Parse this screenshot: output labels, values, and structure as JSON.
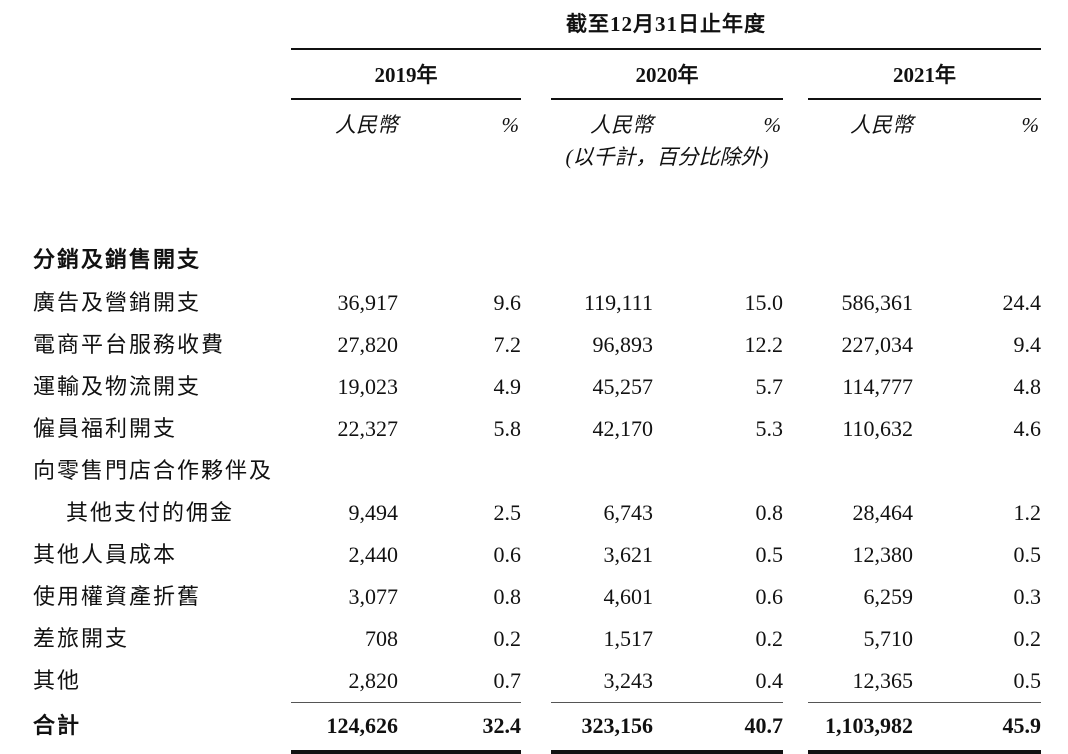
{
  "table": {
    "period_header": "截至12月31日止年度",
    "years": [
      {
        "label": "2019年"
      },
      {
        "label": "2020年"
      },
      {
        "label": "2021年"
      }
    ],
    "columns": {
      "rmb": "人民幣",
      "pct": "%"
    },
    "unit_note": "(以千計，百分比除外)",
    "section_header": "分銷及銷售開支",
    "rows": [
      {
        "label": "廣告及營銷開支",
        "values": [
          "36,917",
          "9.6",
          "119,111",
          "15.0",
          "586,361",
          "24.4"
        ]
      },
      {
        "label": "電商平台服務收費",
        "values": [
          "27,820",
          "7.2",
          "96,893",
          "12.2",
          "227,034",
          "9.4"
        ]
      },
      {
        "label": "運輸及物流開支",
        "values": [
          "19,023",
          "4.9",
          "45,257",
          "5.7",
          "114,777",
          "4.8"
        ]
      },
      {
        "label": "僱員福利開支",
        "values": [
          "22,327",
          "5.8",
          "42,170",
          "5.3",
          "110,632",
          "4.6"
        ]
      },
      {
        "label": "向零售門店合作夥伴及",
        "values": []
      },
      {
        "label": "其他支付的佣金",
        "values": [
          "9,494",
          "2.5",
          "6,743",
          "0.8",
          "28,464",
          "1.2"
        ]
      },
      {
        "label": "其他人員成本",
        "values": [
          "2,440",
          "0.6",
          "3,621",
          "0.5",
          "12,380",
          "0.5"
        ]
      },
      {
        "label": "使用權資產折舊",
        "values": [
          "3,077",
          "0.8",
          "4,601",
          "0.6",
          "6,259",
          "0.3"
        ]
      },
      {
        "label": "差旅開支",
        "values": [
          "708",
          "0.2",
          "1,517",
          "0.2",
          "5,710",
          "0.2"
        ]
      },
      {
        "label": "其他",
        "values": [
          "2,820",
          "0.7",
          "3,243",
          "0.4",
          "12,365",
          "0.5"
        ]
      }
    ],
    "total_row": {
      "label": "合計",
      "values": [
        "124,626",
        "32.4",
        "323,156",
        "40.7",
        "1,103,982",
        "45.9"
      ]
    }
  }
}
